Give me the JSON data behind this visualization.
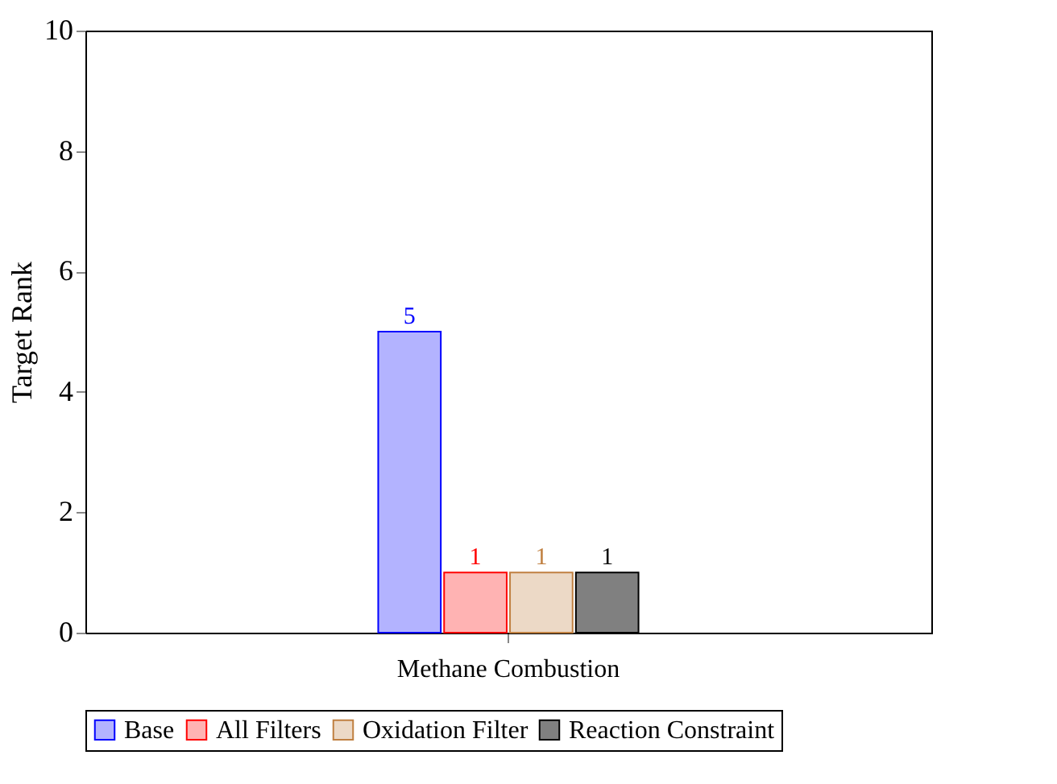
{
  "chart_data": {
    "type": "bar",
    "ylabel": "Target Rank",
    "categories": [
      "Methane Combustion"
    ],
    "series": [
      {
        "name": "Base",
        "color": "#b3b3ff",
        "values": [
          5
        ]
      },
      {
        "name": "All Filters",
        "color": "#ffb3b3",
        "values": [
          1
        ]
      },
      {
        "name": "Oxidation Filter",
        "color": "#ecd9c6",
        "values": [
          1
        ]
      },
      {
        "name": "Reaction Constraint",
        "color": "#808080",
        "values": [
          1
        ]
      }
    ],
    "ylim": [
      0,
      10
    ],
    "yticks": [
      0,
      2,
      4,
      6,
      8,
      10
    ],
    "grid": false,
    "legend": "bottom",
    "data_labels": true
  }
}
